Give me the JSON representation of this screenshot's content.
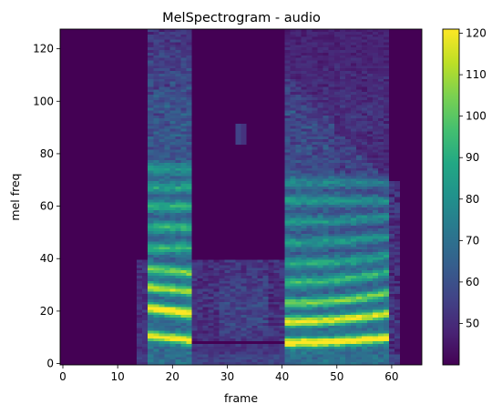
{
  "chart_data": {
    "type": "heatmap",
    "title": "MelSpectrogram - audio",
    "xlabel": "frame",
    "ylabel": "mel freq",
    "xlim": [
      -0.5,
      65.5
    ],
    "ylim": [
      -0.5,
      127.5
    ],
    "x_ticks": [
      "0",
      "10",
      "20",
      "30",
      "40",
      "50",
      "60"
    ],
    "y_ticks": [
      "0",
      "20",
      "40",
      "60",
      "80",
      "100",
      "120"
    ],
    "colorbar": {
      "min": 40,
      "max": 121,
      "ticks": [
        "50",
        "60",
        "70",
        "80",
        "90",
        "100",
        "110",
        "120"
      ]
    },
    "colormap": "viridis",
    "n_frames": 66,
    "n_mels": 128
  }
}
